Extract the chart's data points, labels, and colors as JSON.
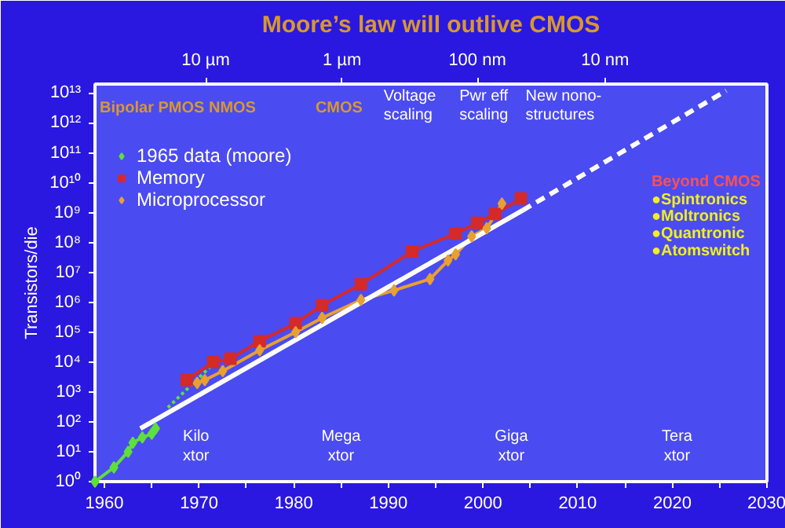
{
  "chart_data": {
    "type": "line",
    "title": "Moore’s law will outlive CMOS",
    "ylabel": "Transistors/die",
    "log": "y",
    "grid": false,
    "legend": "top left",
    "xlim": [
      1959,
      2030
    ],
    "ylim": [
      1,
      20000000000000.0
    ],
    "xticks": [
      1960,
      {
        "value": 1965,
        "label": null
      },
      1970,
      {
        "value": 1975,
        "label": null
      },
      1980,
      {
        "value": 1985,
        "label": null
      },
      1990,
      {
        "value": 1995,
        "label": null
      },
      2000,
      {
        "value": 2005,
        "label": null
      },
      2010,
      {
        "value": 2015,
        "label": null
      },
      2020,
      {
        "value": 2025,
        "label": null
      },
      2030
    ],
    "yticks": [
      {
        "value": 1,
        "label": "10⁰"
      },
      {
        "value": 10,
        "label": "10¹"
      },
      {
        "value": 100,
        "label": "10²"
      },
      {
        "value": 1000.0,
        "label": "10³"
      },
      {
        "value": 10000.0,
        "label": "10⁴"
      },
      {
        "value": 100000.0,
        "label": "10⁵"
      },
      {
        "value": 1000000.0,
        "label": "10⁶"
      },
      {
        "value": 10000000.0,
        "label": "10⁷"
      },
      {
        "value": 100000000.0,
        "label": "10⁸"
      },
      {
        "value": 1000000000.0,
        "label": "10⁹"
      },
      {
        "value": 10000000000.0,
        "label": "10¹⁰"
      },
      {
        "value": 100000000000.0,
        "label": "10¹¹"
      },
      {
        "value": 1000000000000.0,
        "label": "10¹²"
      },
      {
        "value": 10000000000000.0,
        "label": "10¹³"
      }
    ],
    "series": [
      {
        "name": "1965 data (moore)",
        "color": "#5de03a",
        "marker": "diamond",
        "x": [
          1959,
          1961,
          1962.5,
          1963,
          1964,
          1965,
          1965.4
        ],
        "values": [
          1,
          3,
          10,
          20,
          30,
          40,
          60
        ]
      },
      {
        "color": "#5de03a",
        "marker": "none",
        "line_style": "dotted",
        "x": [
          1966.7,
          1971.7
        ],
        "values": [
          300,
          10000.0
        ]
      },
      {
        "name": "Memory",
        "color": "#d42a2a",
        "marker": "square",
        "x": [
          1968.7,
          1971.5,
          1973.3,
          1976.4,
          1980.2,
          1983,
          1987.1,
          1992.5,
          1997.1,
          1999.4,
          2001.3,
          2004
        ],
        "values": [
          2500.0,
          10000.0,
          13000.0,
          50000.0,
          200000.0,
          800000.0,
          4000000.0,
          50000000.0,
          200000000.0,
          450000000.0,
          900000000.0,
          3000000000.0
        ]
      },
      {
        "name": "Microprocessor",
        "color": "#e8a030",
        "marker": "diamond",
        "x": [
          1969.8,
          1970.6,
          1972.5,
          1976.4,
          1980.2,
          1983,
          1987.1,
          1990.6,
          1994.4,
          1996.3,
          1997.1,
          1998.8,
          2000.4,
          2002
        ],
        "values": [
          2000.0,
          2500.0,
          5000.0,
          25000.0,
          100000.0,
          300000.0,
          1200000.0,
          2500000.0,
          6000000.0,
          25000000.0,
          40000000.0,
          160000000.0,
          300000000.0,
          2000000000.0
        ]
      },
      {
        "color": "#ffffff",
        "marker": "none",
        "line_style": "solid",
        "x": [
          1963.8,
          2004.2
        ],
        "values": [
          60,
          1200000000.0
        ]
      },
      {
        "color": "#ffffff",
        "marker": "none",
        "line_style": "dashed",
        "x": [
          2004.2,
          2025.7
        ],
        "values": [
          1200000000.0,
          12000000000000.0
        ]
      }
    ],
    "annotations": [
      "Bipolar PMOS NMOS",
      "CMOS",
      "Voltage\nscaling",
      "Pwr eff\nscaling",
      "New nono-\nstructures",
      "Kilo\nxtor",
      "Mega\nxtor",
      "Giga\nxtor",
      "Tera\nxtor",
      "Beyond CMOS",
      "●Spintronics",
      "●Moltronics",
      "●Quantronic",
      "●Atomswitch",
      "10 µm",
      "1 µm",
      "100 nm",
      "10 nm"
    ]
  }
}
